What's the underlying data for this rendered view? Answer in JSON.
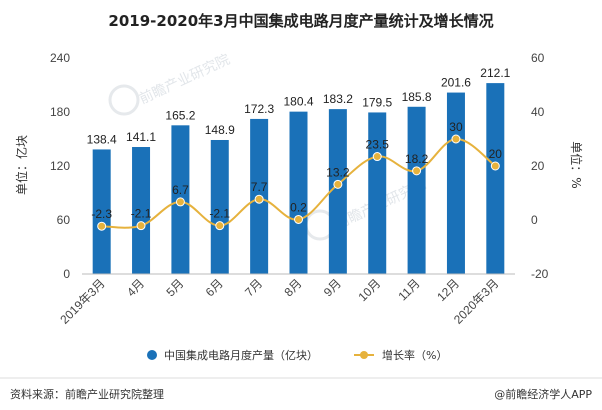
{
  "chart_data": {
    "type": "bar",
    "title": "2019-2020年3月中国集成电路月度产量统计及增长情况",
    "categories": [
      "2019年3月",
      "4月",
      "5月",
      "6月",
      "7月",
      "8月",
      "9月",
      "10月",
      "11月",
      "12月",
      "2020年3月"
    ],
    "series": [
      {
        "name": "中国集成电路月度产量（亿块）",
        "type": "bar",
        "axis": "left",
        "color": "#1a71b8",
        "values": [
          138.4,
          141.1,
          165.2,
          148.9,
          172.3,
          180.4,
          183.2,
          179.5,
          185.8,
          201.6,
          212.1
        ],
        "labels": [
          "138.4",
          "141.1",
          "165.2",
          "148.9",
          "172.3",
          "180.4",
          "183.2",
          "179.5",
          "185.8",
          "201.6",
          "212.1"
        ]
      },
      {
        "name": "增长率（%）",
        "type": "line",
        "axis": "right",
        "color": "#e6b23d",
        "values": [
          -2.3,
          -2.1,
          6.7,
          -2.1,
          7.7,
          0.2,
          13.2,
          23.5,
          18.2,
          30,
          20
        ],
        "labels": [
          "-2.3",
          "-2.1",
          "6.7",
          "-2.1",
          "7.7",
          "0.2",
          "13.2",
          "23.5",
          "18.2",
          "30",
          "20"
        ]
      }
    ],
    "y_left": {
      "label": "单位：亿块",
      "ylim": [
        0,
        240
      ],
      "ticks": [
        "0",
        "60",
        "120",
        "180",
        "240"
      ]
    },
    "y_right": {
      "label": "单位：%",
      "ylim": [
        -20,
        60
      ],
      "ticks": [
        "-20",
        "0",
        "20",
        "40",
        "60"
      ]
    },
    "legend_position": "bottom",
    "grid": false
  },
  "footer": {
    "source": "资料来源：前瞻产业研究院整理",
    "credit": "@前瞻经济学人APP"
  },
  "watermark": {
    "text": "前瞻产业研究院"
  }
}
